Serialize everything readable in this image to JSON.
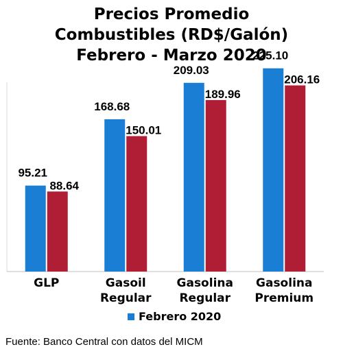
{
  "chart_data": {
    "type": "bar",
    "title_lines": [
      "Precios Promedio",
      "Combustibles (RD$/Galón)",
      "Febrero - Marzo 2020"
    ],
    "categories": [
      [
        "GLP"
      ],
      [
        "Gasoil",
        "Regular"
      ],
      [
        "Gasolina",
        "Regular"
      ],
      [
        "Gasolina",
        "Premium"
      ]
    ],
    "series": [
      {
        "name": "Febrero 2020",
        "color": "#1a7fd4",
        "values": [
          95.21,
          168.68,
          209.03,
          225.1
        ],
        "labels": [
          "95.21",
          "168.68",
          "209.03",
          "225.10"
        ]
      },
      {
        "name": "",
        "color": "#b01e35",
        "values": [
          88.64,
          150.01,
          189.96,
          206.16
        ],
        "labels": [
          "88.64",
          "150.01",
          "189.96",
          "206.16"
        ]
      }
    ],
    "legend": {
      "entries": [
        "Febrero 2020"
      ],
      "position": "bottom"
    },
    "ylim": [
      0,
      240
    ],
    "grid": false
  },
  "footer": {
    "source": "Fuente: Banco Central con datos del MICM"
  }
}
